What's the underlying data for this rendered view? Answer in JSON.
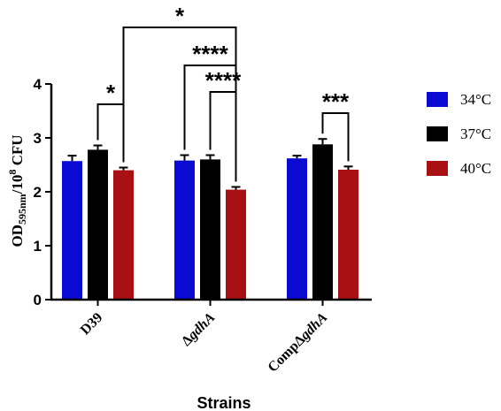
{
  "chart_data": {
    "type": "bar",
    "xlabel": "Strains",
    "ylabel": {
      "prefix": "OD",
      "subscript": "595nm",
      "mid": "/10",
      "superscript": "8",
      "suffix": " CFU"
    },
    "ylim": [
      0,
      4
    ],
    "yticks": [
      "0",
      "1",
      "2",
      "3",
      "4"
    ],
    "grid": false,
    "legend_position": "right",
    "categories": [
      {
        "prefix": "",
        "italic": "",
        "text": "D39"
      },
      {
        "prefix": "Δ",
        "italic": "gdhA",
        "text": ""
      },
      {
        "prefix": "CompΔ",
        "italic": "gdhA",
        "text": ""
      }
    ],
    "series": [
      {
        "name": "34°C",
        "color": "#0a0ad2",
        "values": [
          2.57,
          2.58,
          2.62
        ],
        "errors": [
          0.1,
          0.1,
          0.05
        ]
      },
      {
        "name": "37°C",
        "color": "#000000",
        "values": [
          2.78,
          2.6,
          2.88
        ],
        "errors": [
          0.08,
          0.08,
          0.1
        ]
      },
      {
        "name": "40°C",
        "color": "#a81014",
        "values": [
          2.4,
          2.04,
          2.41
        ],
        "errors": [
          0.05,
          0.05,
          0.06
        ]
      }
    ],
    "significance": [
      {
        "label": "*",
        "from": {
          "category": 0,
          "series": 1
        },
        "to": {
          "category": 0,
          "series": 2
        }
      },
      {
        "label": "****",
        "from": {
          "category": 1,
          "series": 1
        },
        "to": {
          "category": 1,
          "series": 2
        }
      },
      {
        "label": "****",
        "from": {
          "category": 1,
          "series": 0
        },
        "to": {
          "category": 1,
          "series": 2
        }
      },
      {
        "label": "*",
        "from": {
          "category": 0,
          "series": 2
        },
        "to": {
          "category": 1,
          "series": 2
        }
      },
      {
        "label": "***",
        "from": {
          "category": 2,
          "series": 1
        },
        "to": {
          "category": 2,
          "series": 2
        }
      }
    ]
  }
}
